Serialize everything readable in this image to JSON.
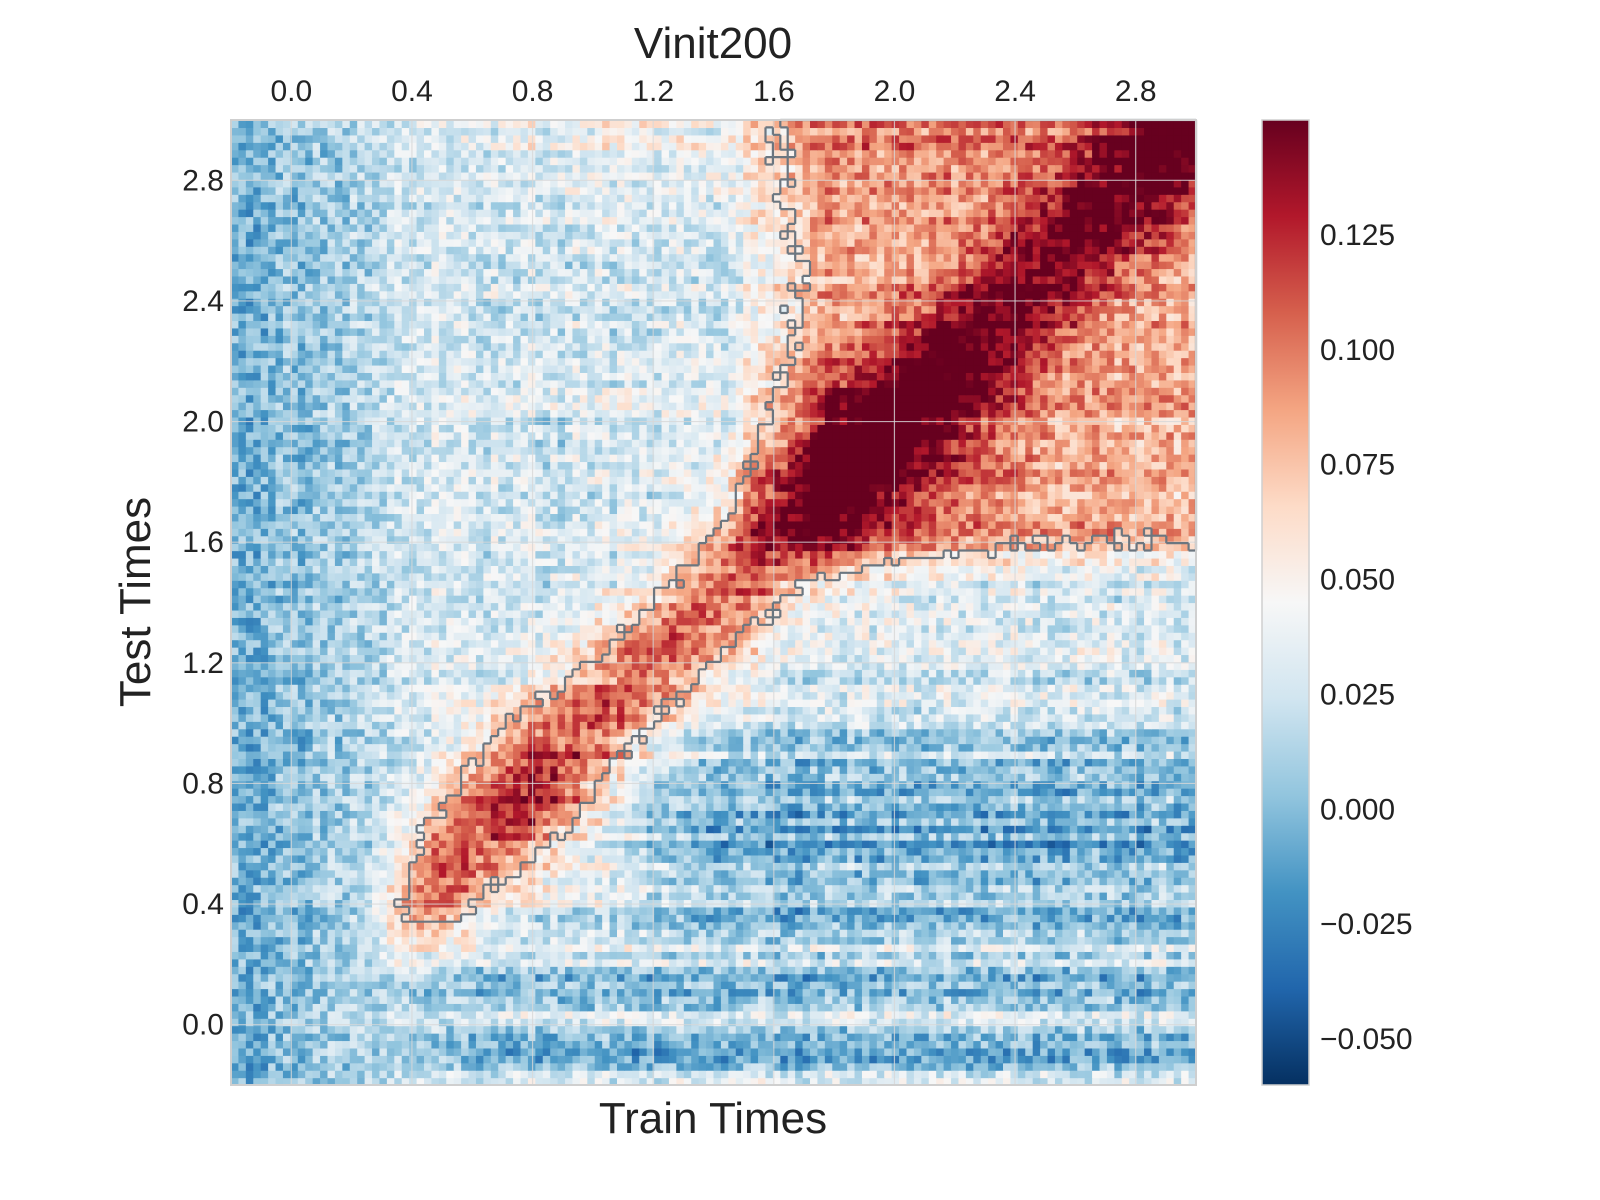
{
  "chart_data": {
    "type": "heatmap",
    "title": "Vinit200",
    "xlabel": "Train Times",
    "ylabel": "Test Times",
    "x_ticks": [
      "0.0",
      "0.4",
      "0.8",
      "1.2",
      "1.6",
      "2.0",
      "2.4",
      "2.8"
    ],
    "y_ticks": [
      "0.0",
      "0.4",
      "0.8",
      "1.2",
      "1.6",
      "2.0",
      "2.4",
      "2.8"
    ],
    "x_tick_values": [
      0.0,
      0.4,
      0.8,
      1.2,
      1.6,
      2.0,
      2.4,
      2.8
    ],
    "y_tick_values": [
      0.0,
      0.4,
      0.8,
      1.2,
      1.6,
      2.0,
      2.4,
      2.8
    ],
    "xlim": [
      -0.2,
      3.0
    ],
    "ylim": [
      -0.2,
      3.0
    ],
    "x_axis_position": "top",
    "grid": true,
    "colormap": "RdBu_r",
    "color_range": [
      -0.06,
      0.15
    ],
    "colorbar": {
      "ticks": [
        "0.125",
        "0.100",
        "0.075",
        "0.050",
        "0.025",
        "0.000",
        "−0.025",
        "−0.050"
      ],
      "tick_values": [
        0.125,
        0.1,
        0.075,
        0.05,
        0.025,
        0.0,
        -0.025,
        -0.05
      ],
      "position": "right"
    },
    "significance_contour": true,
    "regions": [
      {
        "description": "diagonal generalization band",
        "train_range": [
          0.4,
          1.6
        ],
        "test_range": [
          0.4,
          1.6
        ],
        "value": 0.1
      },
      {
        "description": "late sustained block",
        "train_range": [
          1.6,
          3.0
        ],
        "test_range": [
          1.5,
          3.0
        ],
        "value": 0.09
      },
      {
        "description": "baseline negative band",
        "train_range": [
          0.2,
          3.0
        ],
        "test_range": [
          -0.2,
          0.3
        ],
        "value": -0.02
      }
    ]
  },
  "colors": {
    "contour": "#6b7680",
    "grid": "#d8d8d8",
    "frame": "#cfcfcf",
    "cmap_low": "#053061",
    "cmap_mid": "#f7f7f7",
    "cmap_high": "#67001f"
  }
}
